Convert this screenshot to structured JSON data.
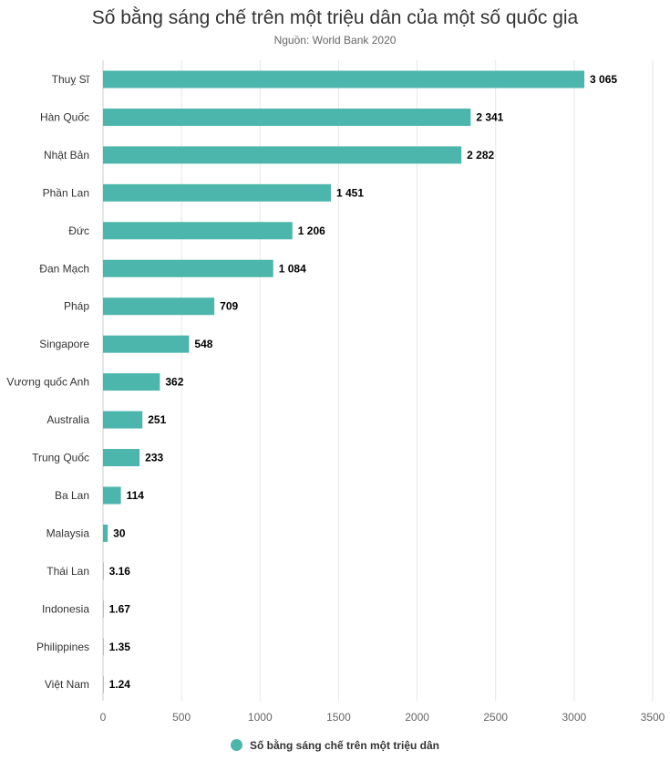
{
  "chart_data": {
    "type": "bar",
    "orientation": "horizontal",
    "title": "Số bằng sáng chế trên một triệu dân của một số quốc gia",
    "subtitle": "Nguồn: World Bank 2020",
    "categories": [
      "Thuỵ Sĩ",
      "Hàn Quốc",
      "Nhật Bản",
      "Phần Lan",
      "Đức",
      "Đan Mạch",
      "Pháp",
      "Singapore",
      "Vương quốc Anh",
      "Australia",
      "Trung Quốc",
      "Ba Lan",
      "Malaysia",
      "Thái Lan",
      "Indonesia",
      "Philippines",
      "Việt Nam"
    ],
    "series": [
      {
        "name": "Số bằng sáng chế trên một triệu dân",
        "values": [
          3065,
          2341,
          2282,
          1451,
          1206,
          1084,
          709,
          548,
          362,
          251,
          233,
          114,
          30,
          3.16,
          1.67,
          1.35,
          1.24
        ],
        "data_labels": [
          "3 065",
          "2 341",
          "2 282",
          "1 451",
          "1 206",
          "1 084",
          "709",
          "548",
          "362",
          "251",
          "233",
          "114",
          "30",
          "3.16",
          "1.67",
          "1.35",
          "1.24"
        ],
        "color": "#4db6ac"
      }
    ],
    "xlim": [
      0,
      3500
    ],
    "x_ticks": [
      0,
      500,
      1000,
      1500,
      2000,
      2500,
      3000,
      3500
    ],
    "grid": true,
    "legend_position": "bottom-center"
  }
}
